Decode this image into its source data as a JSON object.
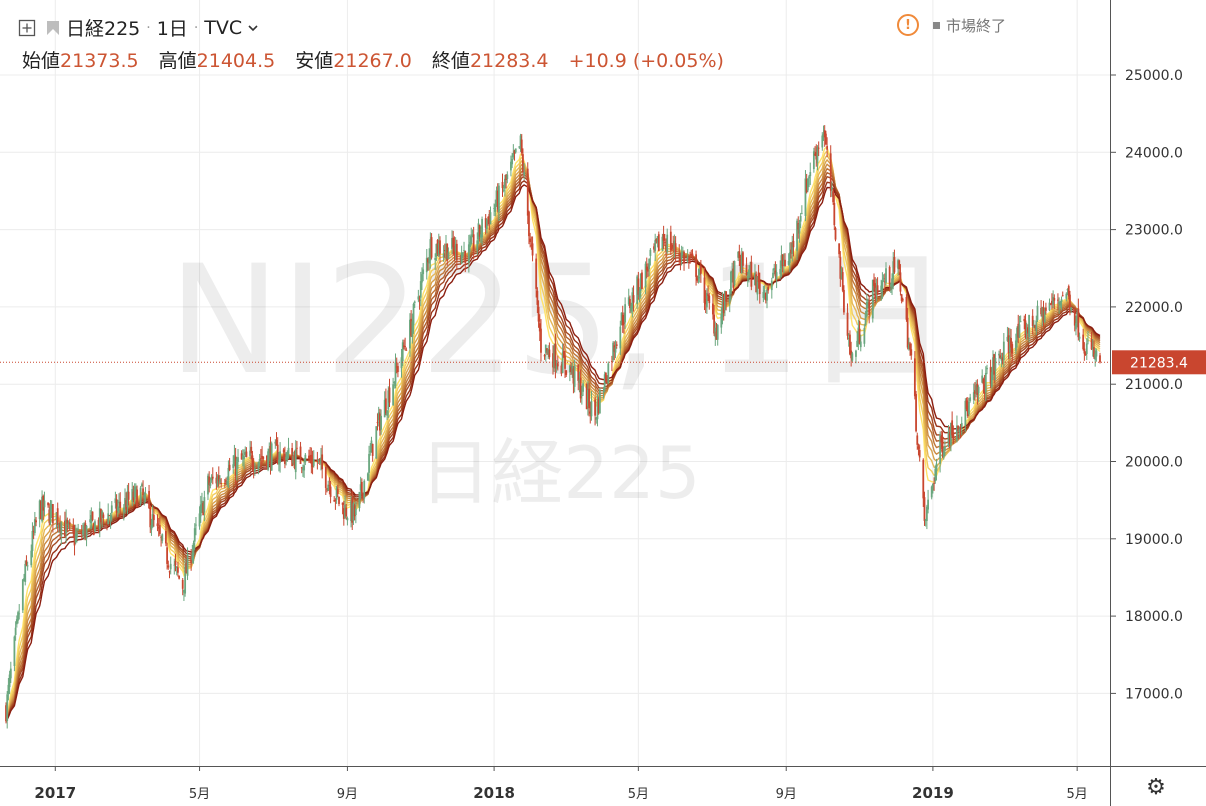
{
  "header": {
    "symbol": "日経225",
    "interval": "1日",
    "source": "TVC",
    "market_status": "市場終了",
    "open_label": "始値",
    "open": "21373.5",
    "high_label": "高値",
    "high": "21404.5",
    "low_label": "安値",
    "low": "21267.0",
    "close_label": "終値",
    "close": "21283.4",
    "change": "+10.9 (+0.05%)"
  },
  "watermark": {
    "ticker": "NI225, 1日",
    "name": "日経225"
  },
  "colors": {
    "up": "#6aa77f",
    "down": "#c9462f",
    "price_line": "#c9462f",
    "grid": "#ececec",
    "ribbon_fast": "#ffe36a",
    "ribbon_slow": "#8b1e10"
  },
  "chart_data": {
    "type": "candlestick",
    "ylim": [
      16200,
      25600
    ],
    "y_ticks": [
      "25000.0",
      "24000.0",
      "23000.0",
      "22000.0",
      "21000.0",
      "20000.0",
      "19000.0",
      "18000.0",
      "17000.0"
    ],
    "x_ticks": [
      "2017",
      "5月",
      "9月",
      "2018",
      "5月",
      "9月",
      "2019",
      "5月"
    ],
    "last_price": "21283.4",
    "x_range": [
      "2016-11-21",
      "2019-05-20"
    ],
    "price_path": [
      [
        "2016-11-21",
        16800
      ],
      [
        "2016-12-05",
        18400
      ],
      [
        "2016-12-19",
        19400
      ],
      [
        "2017-01-02",
        19300
      ],
      [
        "2017-01-16",
        19000
      ],
      [
        "2017-02-13",
        19300
      ],
      [
        "2017-03-13",
        19600
      ],
      [
        "2017-04-03",
        18800
      ],
      [
        "2017-04-17",
        18400
      ],
      [
        "2017-05-08",
        19700
      ],
      [
        "2017-06-05",
        20000
      ],
      [
        "2017-07-03",
        20100
      ],
      [
        "2017-08-07",
        20000
      ],
      [
        "2017-08-28",
        19400
      ],
      [
        "2017-09-08",
        19300
      ],
      [
        "2017-09-25",
        20400
      ],
      [
        "2017-10-23",
        21700
      ],
      [
        "2017-11-09",
        22800
      ],
      [
        "2017-12-11",
        22700
      ],
      [
        "2018-01-08",
        23500
      ],
      [
        "2018-01-23",
        24100
      ],
      [
        "2018-02-09",
        21500
      ],
      [
        "2018-03-05",
        21200
      ],
      [
        "2018-03-26",
        20600
      ],
      [
        "2018-04-16",
        21800
      ],
      [
        "2018-05-21",
        22900
      ],
      [
        "2018-06-18",
        22500
      ],
      [
        "2018-07-05",
        21700
      ],
      [
        "2018-07-23",
        22600
      ],
      [
        "2018-08-13",
        22200
      ],
      [
        "2018-09-05",
        22700
      ],
      [
        "2018-09-21",
        23800
      ],
      [
        "2018-10-02",
        24300
      ],
      [
        "2018-10-25",
        21300
      ],
      [
        "2018-11-12",
        22200
      ],
      [
        "2018-12-03",
        22500
      ],
      [
        "2018-12-14",
        21300
      ],
      [
        "2018-12-25",
        19200
      ],
      [
        "2019-01-07",
        20200
      ],
      [
        "2019-02-04",
        20800
      ],
      [
        "2019-03-04",
        21500
      ],
      [
        "2019-04-22",
        22200
      ],
      [
        "2019-05-08",
        21500
      ],
      [
        "2019-05-20",
        21283
      ]
    ]
  }
}
